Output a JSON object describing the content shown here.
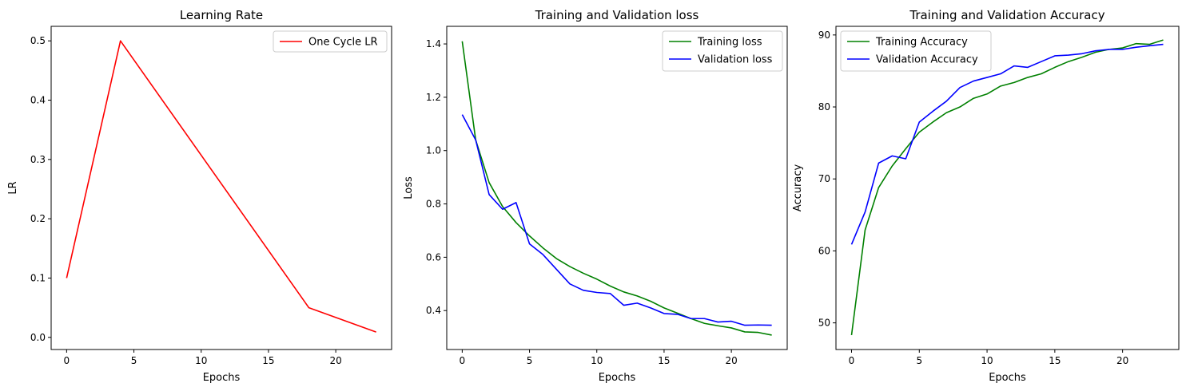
{
  "chart_data": [
    {
      "type": "line",
      "title": "Learning Rate",
      "xlabel": "Epochs",
      "ylabel": "LR",
      "xlim": [
        -1.15,
        24.15
      ],
      "ylim": [
        -0.0205,
        0.5245
      ],
      "xticks": [
        0,
        5,
        10,
        15,
        20
      ],
      "xtick_labels": [
        "0",
        "5",
        "10",
        "15",
        "20"
      ],
      "yticks": [
        0.0,
        0.1,
        0.2,
        0.3,
        0.4,
        0.5
      ],
      "ytick_labels": [
        "0.0",
        "0.1",
        "0.2",
        "0.3",
        "0.4",
        "0.5"
      ],
      "legend_position": "top-right",
      "grid": false,
      "series": [
        {
          "name": "One Cycle LR",
          "color": "#ff0000",
          "x": [
            0,
            4,
            18,
            23
          ],
          "y": [
            0.1,
            0.5,
            0.05,
            0.009
          ]
        }
      ]
    },
    {
      "type": "line",
      "title": "Training and Validation loss",
      "xlabel": "Epochs",
      "ylabel": "Loss",
      "xlim": [
        -1.15,
        24.15
      ],
      "ylim": [
        0.254,
        1.466
      ],
      "xticks": [
        0,
        5,
        10,
        15,
        20
      ],
      "xtick_labels": [
        "0",
        "5",
        "10",
        "15",
        "20"
      ],
      "yticks": [
        0.4,
        0.6,
        0.8,
        1.0,
        1.2,
        1.4
      ],
      "ytick_labels": [
        "0.4",
        "0.6",
        "0.8",
        "1.0",
        "1.2",
        "1.4"
      ],
      "legend_position": "top-right",
      "grid": false,
      "series": [
        {
          "name": "Training loss",
          "color": "#008000",
          "x": [
            0,
            1,
            2,
            3,
            4,
            5,
            6,
            7,
            8,
            9,
            10,
            11,
            12,
            13,
            14,
            15,
            16,
            17,
            18,
            19,
            20,
            21,
            22,
            23
          ],
          "y": [
            1.41,
            1.04,
            0.88,
            0.79,
            0.73,
            0.68,
            0.635,
            0.595,
            0.565,
            0.54,
            0.518,
            0.492,
            0.47,
            0.455,
            0.435,
            0.41,
            0.39,
            0.37,
            0.352,
            0.343,
            0.335,
            0.32,
            0.318,
            0.308
          ]
        },
        {
          "name": "Validation loss",
          "color": "#0000ff",
          "x": [
            0,
            1,
            2,
            3,
            4,
            5,
            6,
            7,
            8,
            9,
            10,
            11,
            12,
            13,
            14,
            15,
            16,
            17,
            18,
            19,
            20,
            21,
            22,
            23
          ],
          "y": [
            1.135,
            1.04,
            0.835,
            0.78,
            0.805,
            0.65,
            0.61,
            0.555,
            0.5,
            0.476,
            0.468,
            0.464,
            0.42,
            0.428,
            0.41,
            0.389,
            0.386,
            0.37,
            0.37,
            0.357,
            0.36,
            0.345,
            0.346,
            0.345
          ]
        }
      ]
    },
    {
      "type": "line",
      "title": "Training and Validation Accuracy",
      "xlabel": "Epochs",
      "ylabel": "Accuracy",
      "xlim": [
        -1.15,
        24.15
      ],
      "ylim": [
        46.3,
        91.2
      ],
      "xticks": [
        0,
        5,
        10,
        15,
        20
      ],
      "xtick_labels": [
        "0",
        "5",
        "10",
        "15",
        "20"
      ],
      "yticks": [
        50,
        60,
        70,
        80,
        90
      ],
      "ytick_labels": [
        "50",
        "60",
        "70",
        "80",
        "90"
      ],
      "legend_position": "top-left",
      "grid": false,
      "series": [
        {
          "name": "Training Accuracy",
          "color": "#008000",
          "x": [
            0,
            1,
            2,
            3,
            4,
            5,
            6,
            7,
            8,
            9,
            10,
            11,
            12,
            13,
            14,
            15,
            16,
            17,
            18,
            19,
            20,
            21,
            22,
            23
          ],
          "y": [
            48.3,
            62.9,
            68.8,
            71.8,
            74.2,
            76.5,
            77.9,
            79.2,
            80.0,
            81.2,
            81.8,
            82.9,
            83.4,
            84.1,
            84.6,
            85.5,
            86.3,
            86.9,
            87.6,
            88.0,
            88.2,
            88.8,
            88.7,
            89.3
          ]
        },
        {
          "name": "Validation Accuracy",
          "color": "#0000ff",
          "x": [
            0,
            1,
            2,
            3,
            4,
            5,
            6,
            7,
            8,
            9,
            10,
            11,
            12,
            13,
            14,
            15,
            16,
            17,
            18,
            19,
            20,
            21,
            22,
            23
          ],
          "y": [
            60.9,
            65.4,
            72.2,
            73.2,
            72.8,
            77.9,
            79.4,
            80.8,
            82.7,
            83.6,
            84.1,
            84.6,
            85.7,
            85.5,
            86.3,
            87.1,
            87.2,
            87.4,
            87.8,
            88.0,
            88.0,
            88.3,
            88.5,
            88.7
          ]
        }
      ]
    }
  ]
}
